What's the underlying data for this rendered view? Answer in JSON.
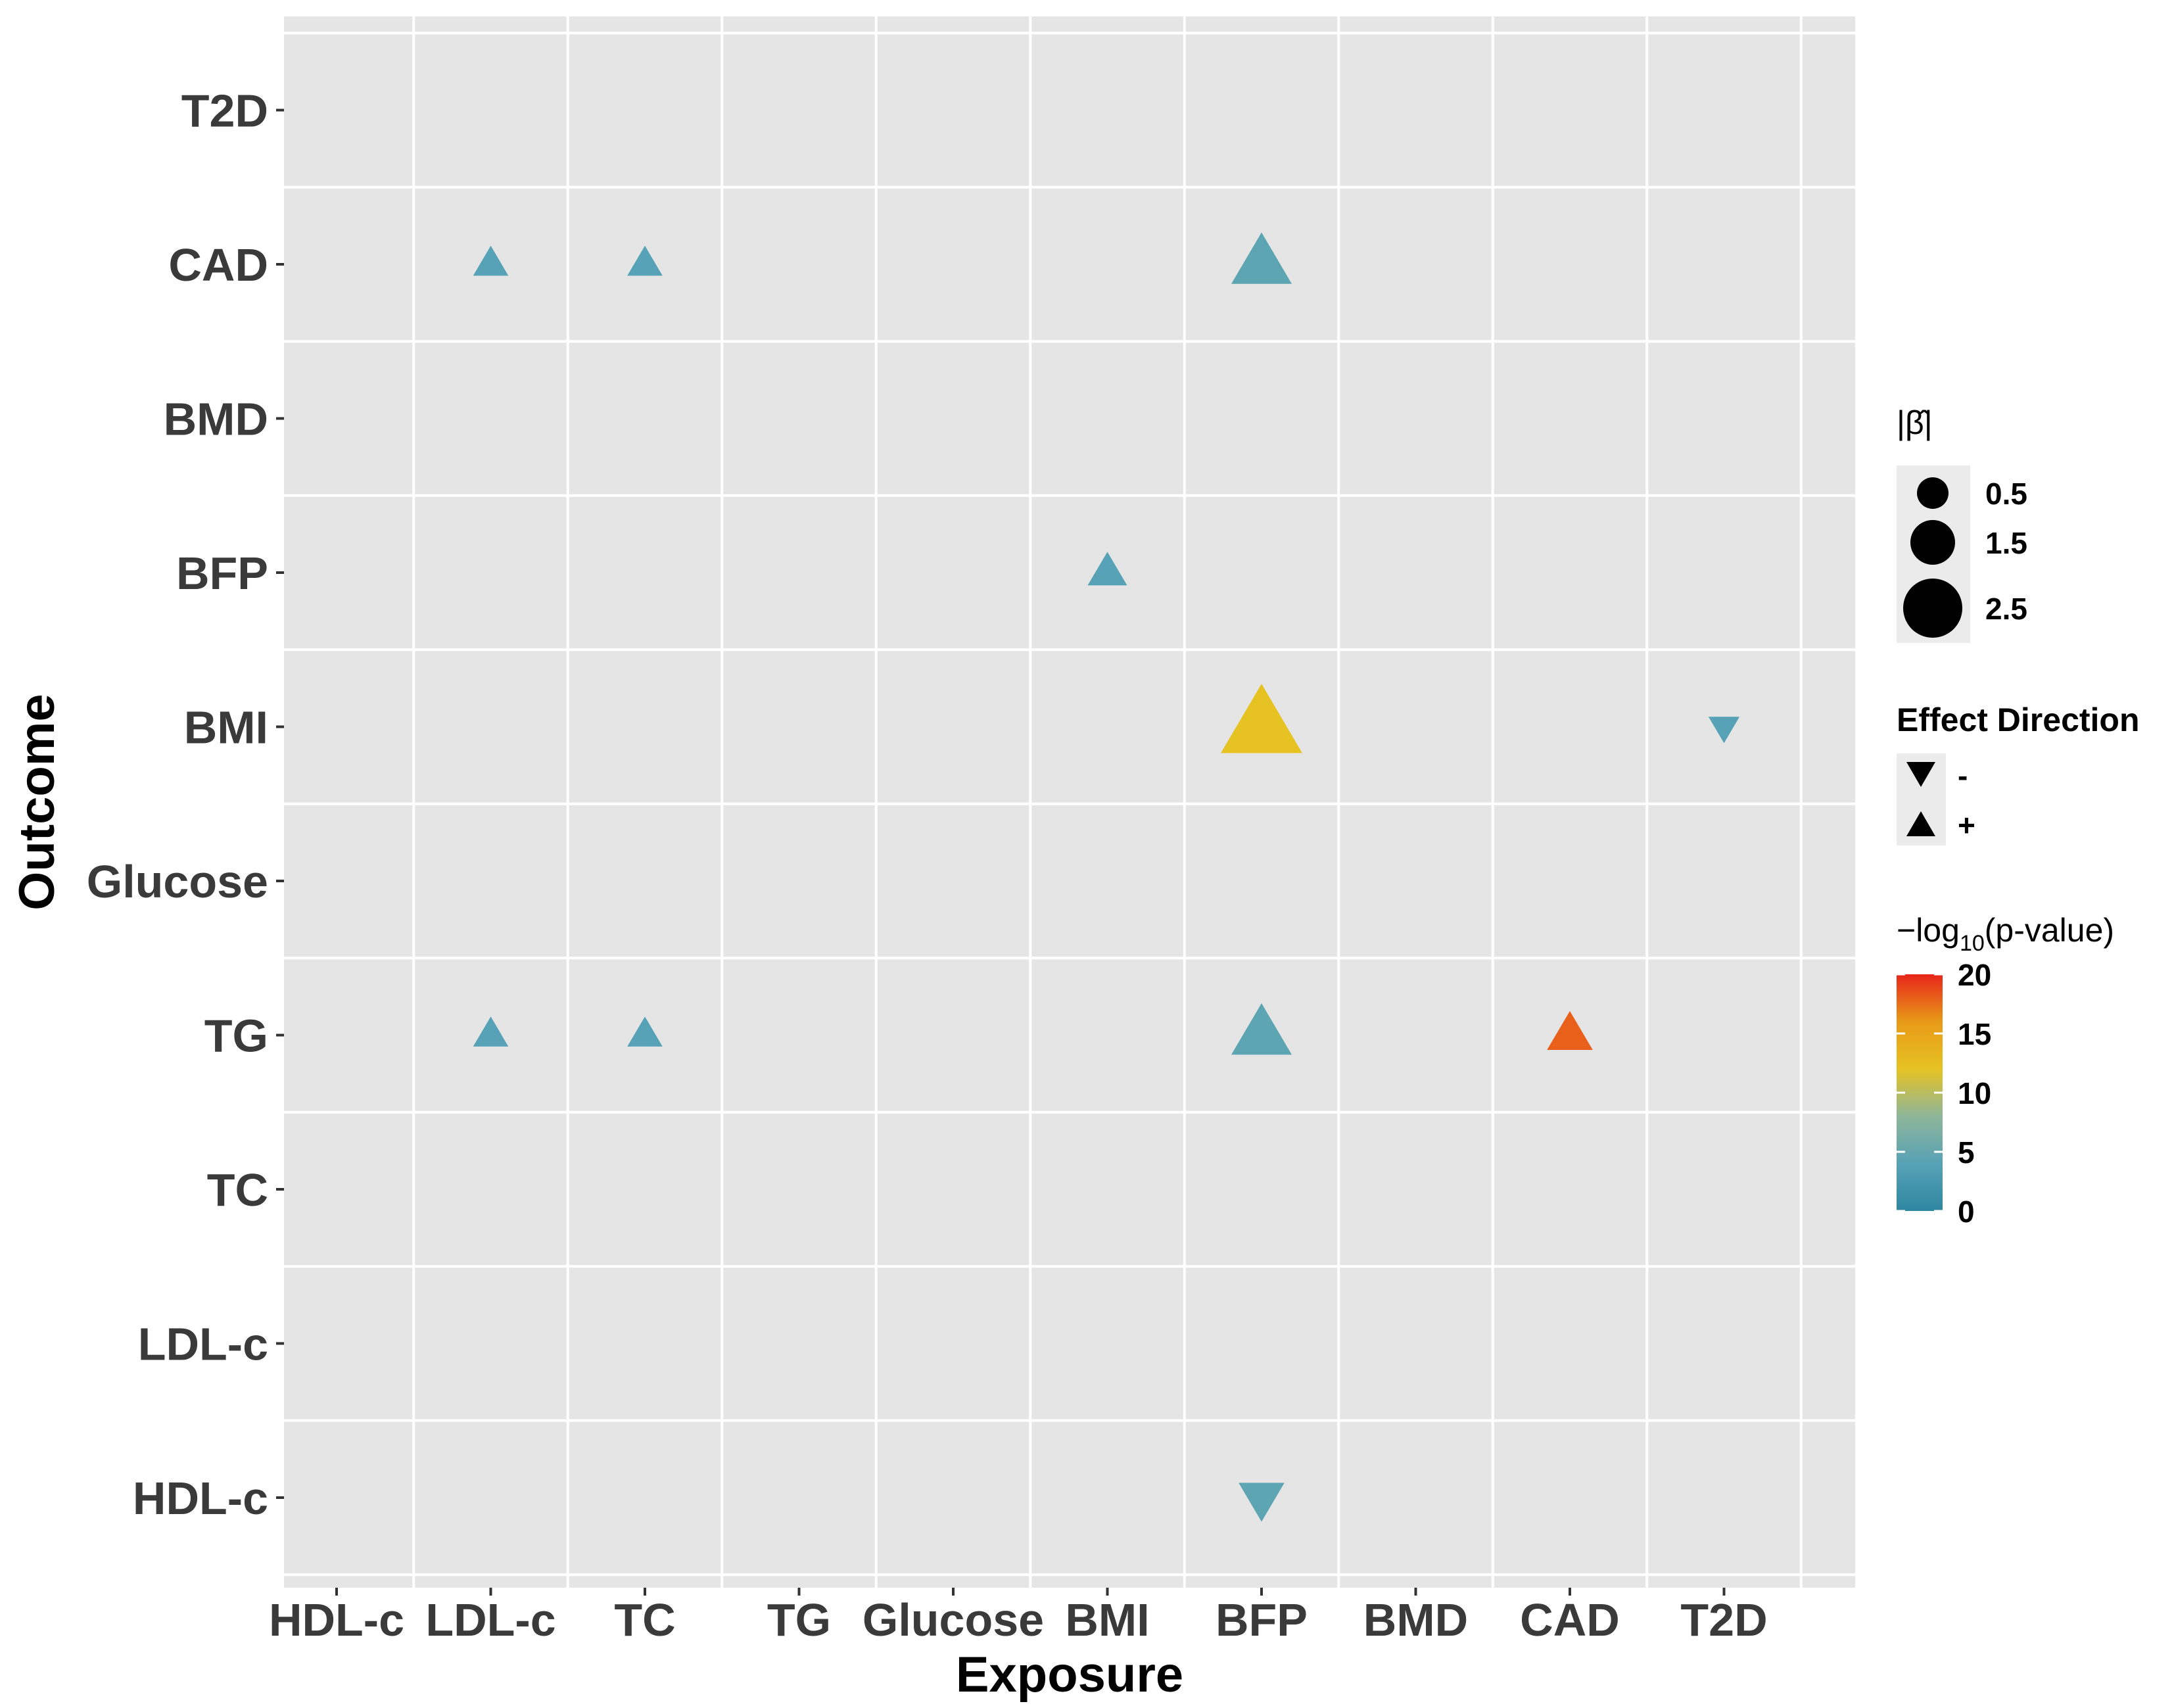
{
  "chart_data": {
    "type": "scatter",
    "xlabel": "Exposure",
    "ylabel": "Outcome",
    "x_categories": [
      "HDL-c",
      "LDL-c",
      "TC",
      "TG",
      "Glucose",
      "BMI",
      "BFP",
      "BMD",
      "CAD",
      "T2D"
    ],
    "y_categories": [
      "HDL-c",
      "LDL-c",
      "TC",
      "TG",
      "Glucose",
      "BMI",
      "BFP",
      "BMD",
      "CAD",
      "T2D"
    ],
    "points": [
      {
        "exposure": "LDL-c",
        "outcome": "CAD",
        "abs_beta": 0.3,
        "direction": "+",
        "neg_log10_p": 4
      },
      {
        "exposure": "TC",
        "outcome": "CAD",
        "abs_beta": 0.3,
        "direction": "+",
        "neg_log10_p": 4
      },
      {
        "exposure": "BFP",
        "outcome": "CAD",
        "abs_beta": 1.5,
        "direction": "+",
        "neg_log10_p": 4.5
      },
      {
        "exposure": "BMI",
        "outcome": "BFP",
        "abs_beta": 0.5,
        "direction": "+",
        "neg_log10_p": 4
      },
      {
        "exposure": "BFP",
        "outcome": "BMI",
        "abs_beta": 2.5,
        "direction": "+",
        "neg_log10_p": 12
      },
      {
        "exposure": "T2D",
        "outcome": "BMI",
        "abs_beta": 0.1,
        "direction": "-",
        "neg_log10_p": 4
      },
      {
        "exposure": "LDL-c",
        "outcome": "TG",
        "abs_beta": 0.3,
        "direction": "+",
        "neg_log10_p": 4
      },
      {
        "exposure": "TC",
        "outcome": "TG",
        "abs_beta": 0.3,
        "direction": "+",
        "neg_log10_p": 4
      },
      {
        "exposure": "BFP",
        "outcome": "TG",
        "abs_beta": 1.5,
        "direction": "+",
        "neg_log10_p": 4.5
      },
      {
        "exposure": "CAD",
        "outcome": "TG",
        "abs_beta": 0.8,
        "direction": "+",
        "neg_log10_p": 18
      },
      {
        "exposure": "BFP",
        "outcome": "HDL-c",
        "abs_beta": 0.8,
        "direction": "-",
        "neg_log10_p": 4.5
      }
    ],
    "legend": {
      "size": {
        "title": "|β̂|",
        "values": [
          0.5,
          1.5,
          2.5
        ],
        "labels": [
          "0.5",
          "1.5",
          "2.5"
        ]
      },
      "shape": {
        "title": "Effect Direction",
        "labels": [
          "-",
          "+"
        ]
      },
      "color": {
        "title_prefix": "−log",
        "title_sub": "10",
        "title_suffix": "(p-value)",
        "range": [
          0,
          20
        ],
        "breaks": [
          "20",
          "15",
          "10",
          "5",
          "0"
        ],
        "colors": [
          "#2e87a1",
          "#57a2b6",
          "#8eb69a",
          "#e6c323",
          "#e89a18",
          "#e8251a"
        ]
      }
    },
    "background": "#e5e5e5",
    "grid": true
  }
}
